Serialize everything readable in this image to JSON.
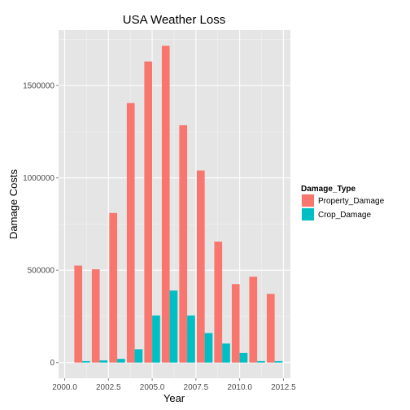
{
  "chart_data": {
    "type": "bar",
    "title": "USA Weather Loss",
    "xlabel": "Year",
    "ylabel": "Damage Costs",
    "xlim": [
      1999.65,
      2012.9
    ],
    "ylim": [
      -85000,
      1800000
    ],
    "x_ticks": [
      2000.0,
      2002.5,
      2005.0,
      2007.5,
      2010.0,
      2012.5
    ],
    "x_tick_labels": [
      "2000.0",
      "2002.5",
      "2005.0",
      "2007.5",
      "2010.0",
      "2012.5"
    ],
    "y_ticks": [
      0,
      500000,
      1000000,
      1500000
    ],
    "y_tick_labels": [
      "0",
      "500000",
      "1000000",
      "1500000"
    ],
    "grid": true,
    "legend": {
      "title": "Damage_Type",
      "position": "right"
    },
    "x": [
      2001,
      2002,
      2003,
      2004,
      2005,
      2006,
      2007,
      2008,
      2009,
      2010,
      2011,
      2012
    ],
    "series": [
      {
        "name": "Property_Damage",
        "color": "#F8766D",
        "values": [
          525000,
          505000,
          810000,
          1405000,
          1630000,
          1715000,
          1285000,
          1040000,
          655000,
          425000,
          465000,
          372000
        ]
      },
      {
        "name": "Crop_Damage",
        "color": "#00BFC4",
        "values": [
          8000,
          12000,
          20000,
          72000,
          255000,
          390000,
          255000,
          160000,
          103000,
          52000,
          8000,
          8000
        ]
      }
    ]
  }
}
